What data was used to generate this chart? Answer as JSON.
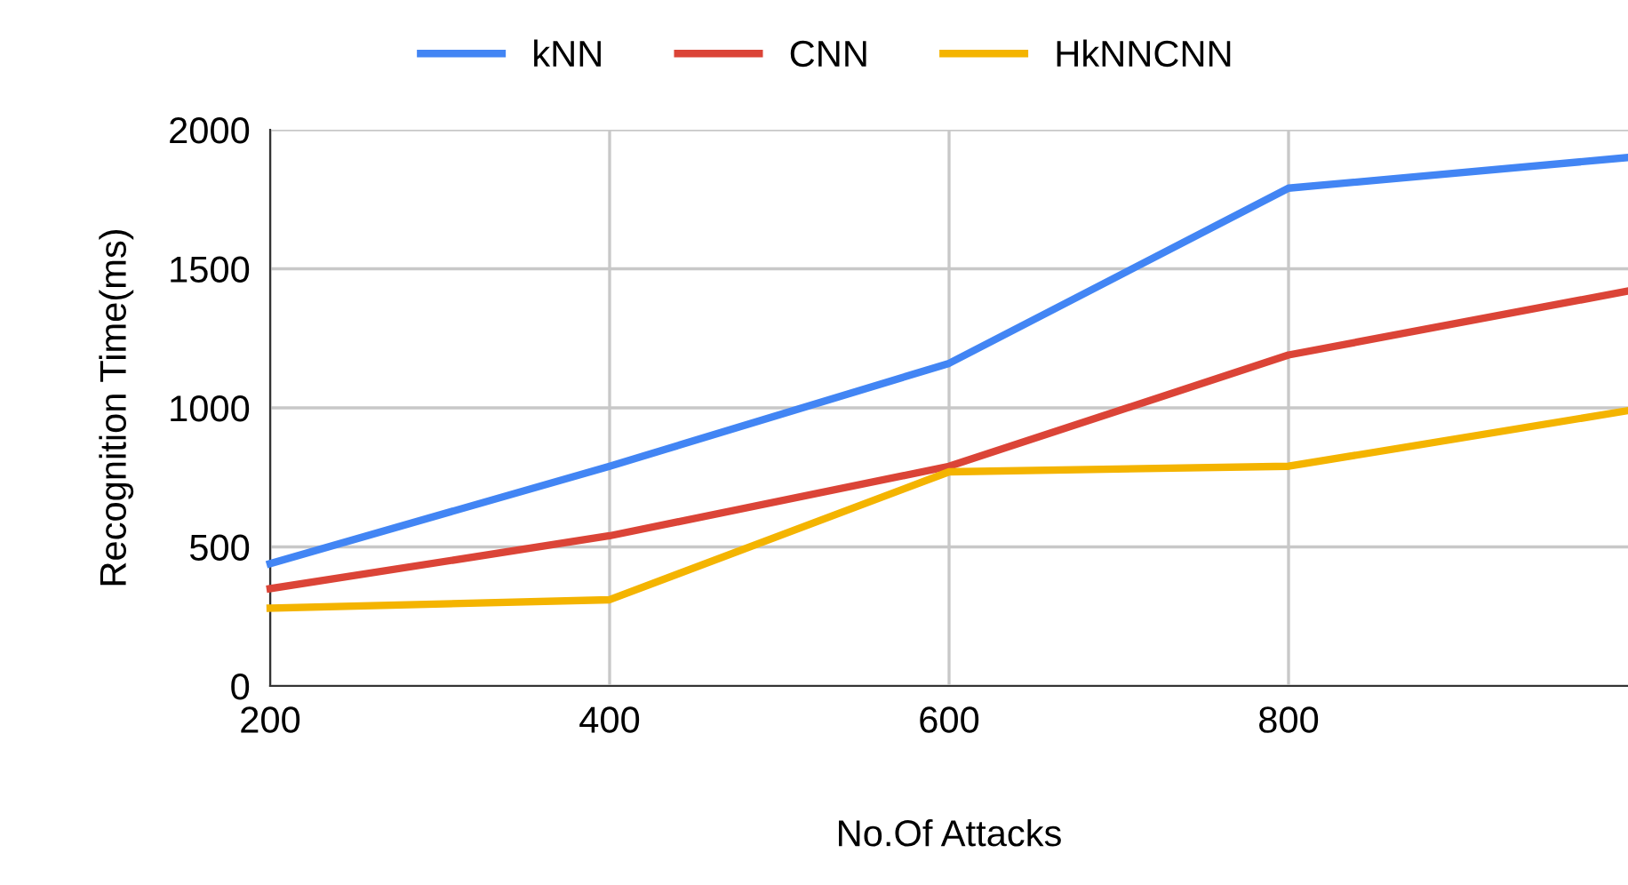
{
  "chart_data": {
    "type": "line",
    "xlabel": "No.Of Attacks",
    "ylabel": "Recognition Time(ms)",
    "x": [
      200,
      400,
      600,
      800,
      1000
    ],
    "series": [
      {
        "name": "kNN",
        "color": "#4285f4",
        "values": [
          440,
          790,
          1160,
          1790,
          1900
        ]
      },
      {
        "name": "CNN",
        "color": "#db4437",
        "values": [
          350,
          540,
          790,
          1190,
          1420
        ]
      },
      {
        "name": "HkNNCNN",
        "color": "#f4b400",
        "values": [
          280,
          310,
          770,
          790,
          990
        ]
      }
    ],
    "xlim": [
      200,
      1000
    ],
    "xticks": [
      200,
      400,
      600,
      800
    ],
    "ylim": [
      0,
      2000
    ],
    "yticks": [
      0,
      500,
      1000,
      1500,
      2000
    ],
    "grid": true,
    "legend": "top",
    "marker": "none",
    "line_style": "solid"
  }
}
